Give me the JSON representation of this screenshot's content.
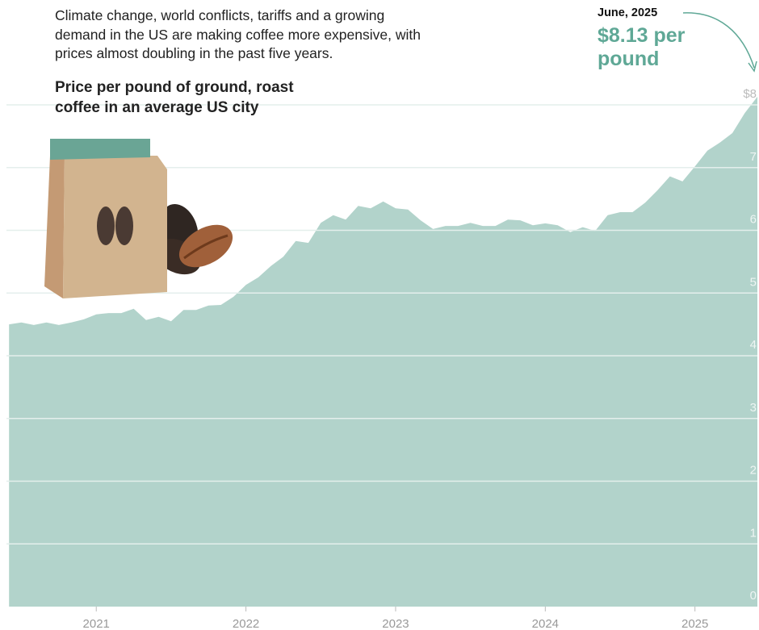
{
  "chart_data": {
    "type": "area",
    "intro": "Climate change, world conflicts, tariffs and a growing demand in the US are making coffee more expensive, with prices almost doubling in the past five years.",
    "title": "Price per pound of ground, roast coffee in an average US city",
    "annotation": {
      "date": "June, 2025",
      "text": "$8.13 per pound"
    },
    "color": "#b2d3cb",
    "x": [
      2020.417,
      2020.5,
      2020.583,
      2020.667,
      2020.75,
      2020.833,
      2020.917,
      2021,
      2021.083,
      2021.167,
      2021.25,
      2021.333,
      2021.417,
      2021.5,
      2021.583,
      2021.667,
      2021.75,
      2021.833,
      2021.917,
      2022,
      2022.083,
      2022.167,
      2022.25,
      2022.333,
      2022.417,
      2022.5,
      2022.583,
      2022.667,
      2022.75,
      2022.833,
      2022.917,
      2023,
      2023.083,
      2023.167,
      2023.25,
      2023.333,
      2023.417,
      2023.5,
      2023.583,
      2023.667,
      2023.75,
      2023.833,
      2023.917,
      2024,
      2024.083,
      2024.167,
      2024.25,
      2024.333,
      2024.417,
      2024.5,
      2024.583,
      2024.667,
      2024.75,
      2024.833,
      2024.917,
      2025,
      2025.083,
      2025.167,
      2025.25,
      2025.333,
      2025.417
    ],
    "values": [
      4.5,
      4.53,
      4.49,
      4.53,
      4.49,
      4.53,
      4.58,
      4.66,
      4.68,
      4.68,
      4.75,
      4.57,
      4.62,
      4.55,
      4.73,
      4.73,
      4.8,
      4.81,
      4.94,
      5.13,
      5.25,
      5.43,
      5.58,
      5.83,
      5.8,
      6.12,
      6.24,
      6.17,
      6.39,
      6.35,
      6.46,
      6.35,
      6.33,
      6.16,
      6.02,
      6.07,
      6.07,
      6.12,
      6.07,
      6.07,
      6.17,
      6.16,
      6.08,
      6.11,
      6.08,
      5.97,
      6.05,
      5.99,
      6.24,
      6.29,
      6.29,
      6.44,
      6.64,
      6.86,
      6.78,
      7.02,
      7.27,
      7.4,
      7.55,
      7.87,
      8.13
    ],
    "xlim": [
      2020.4,
      2025.417
    ],
    "xticks": [
      2021,
      2022,
      2023,
      2024,
      2025
    ],
    "ylim": [
      0,
      8
    ],
    "yticks": [
      0,
      1,
      2,
      3,
      4,
      5,
      6,
      7,
      {
        "value": 8,
        "label": "$8"
      }
    ],
    "grid": true
  }
}
